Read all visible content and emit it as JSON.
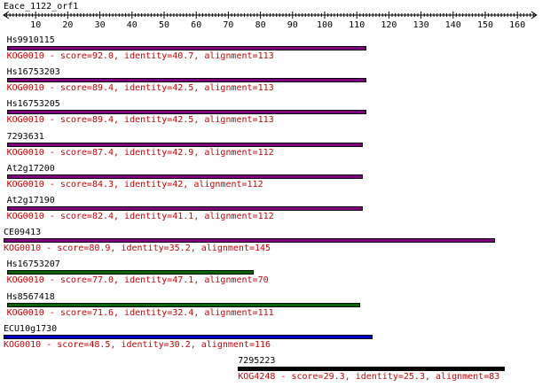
{
  "query": {
    "name": "Eace_1122_orf1"
  },
  "ruler": {
    "min": 0,
    "max": 166,
    "labels": [
      "10",
      "20",
      "30",
      "40",
      "50",
      "60",
      "70",
      "80",
      "90",
      "100",
      "110",
      "120",
      "130",
      "140",
      "150",
      "160"
    ]
  },
  "hits": [
    {
      "name": "Hs9910115",
      "kog": "KOG0010",
      "score": "92.0",
      "identity": "40.7",
      "alignment": "113",
      "start": 1,
      "end": 113,
      "color": "#800080",
      "details": "KOG0010 - score=92.0, identity=40.7, alignment=113"
    },
    {
      "name": "Hs16753203",
      "kog": "KOG0010",
      "score": "89.4",
      "identity": "42.5",
      "alignment": "113",
      "start": 1,
      "end": 113,
      "color": "#800080",
      "details": "KOG0010 - score=89.4, identity=42.5, alignment=113"
    },
    {
      "name": "Hs16753205",
      "kog": "KOG0010",
      "score": "89.4",
      "identity": "42.5",
      "alignment": "113",
      "start": 1,
      "end": 113,
      "color": "#800080",
      "details": "KOG0010 - score=89.4, identity=42.5, alignment=113"
    },
    {
      "name": "7293631",
      "kog": "KOG0010",
      "score": "87.4",
      "identity": "42.9",
      "alignment": "112",
      "start": 1,
      "end": 112,
      "color": "#800080",
      "details": "KOG0010 - score=87.4, identity=42.9, alignment=112"
    },
    {
      "name": "At2g17200",
      "kog": "KOG0010",
      "score": "84.3",
      "identity": "42",
      "alignment": "112",
      "start": 1,
      "end": 112,
      "color": "#800080",
      "details": "KOG0010 - score=84.3, identity=42, alignment=112"
    },
    {
      "name": "At2g17190",
      "kog": "KOG0010",
      "score": "82.4",
      "identity": "41.1",
      "alignment": "112",
      "start": 1,
      "end": 112,
      "color": "#800080",
      "details": "KOG0010 - score=82.4, identity=41.1, alignment=112"
    },
    {
      "name": "CE09413",
      "kog": "KOG0010",
      "score": "80.9",
      "identity": "35.2",
      "alignment": "145",
      "start": 0,
      "end": 153,
      "color": "#800080",
      "details": "KOG0010 - score=80.9, identity=35.2, alignment=145"
    },
    {
      "name": "Hs16753207",
      "kog": "KOG0010",
      "score": "77.0",
      "identity": "47.1",
      "alignment": "70",
      "start": 1,
      "end": 78,
      "color": "#006400",
      "details": "KOG0010 - score=77.0, identity=47.1, alignment=70"
    },
    {
      "name": "Hs8567418",
      "kog": "KOG0010",
      "score": "71.6",
      "identity": "32.4",
      "alignment": "111",
      "start": 1,
      "end": 111,
      "color": "#006400",
      "details": "KOG0010 - score=71.6, identity=32.4, alignment=111"
    },
    {
      "name": "ECU10g1730",
      "kog": "KOG0010",
      "score": "48.5",
      "identity": "30.2",
      "alignment": "116",
      "start": 0,
      "end": 115,
      "color": "#0000cd",
      "details": "KOG0010 - score=48.5, identity=30.2, alignment=116"
    },
    {
      "name": "7295223",
      "kog": "KOG4248",
      "score": "29.3",
      "identity": "25.3",
      "alignment": "83",
      "start": 73,
      "end": 156,
      "color": "#000000",
      "details": "KOG4248 - score=29.3, identity=25.3, alignment=83"
    }
  ],
  "colors": {
    "detail_text": "#cc0000",
    "ruler": "#000000"
  }
}
